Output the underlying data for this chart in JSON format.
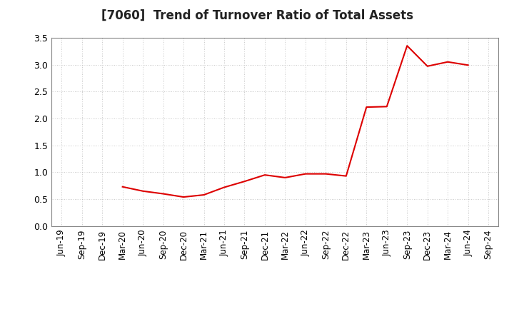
{
  "title": "[7060]  Trend of Turnover Ratio of Total Assets",
  "line_color": "#dd0000",
  "line_width": 1.5,
  "background_color": "#ffffff",
  "grid_color": "#bbbbbb",
  "ylim": [
    0.0,
    3.5
  ],
  "yticks": [
    0.0,
    0.5,
    1.0,
    1.5,
    2.0,
    2.5,
    3.0,
    3.5
  ],
  "values": [
    null,
    null,
    null,
    0.73,
    0.65,
    0.6,
    0.54,
    0.58,
    0.72,
    0.83,
    0.95,
    0.9,
    0.97,
    0.97,
    0.93,
    2.21,
    2.22,
    3.35,
    2.97,
    3.05,
    2.99,
    null
  ],
  "xtick_labels": [
    "Jun-19",
    "Sep-19",
    "Dec-19",
    "Mar-20",
    "Jun-20",
    "Sep-20",
    "Dec-20",
    "Mar-21",
    "Jun-21",
    "Sep-21",
    "Dec-21",
    "Mar-22",
    "Jun-22",
    "Sep-22",
    "Dec-22",
    "Mar-23",
    "Jun-23",
    "Sep-23",
    "Dec-23",
    "Mar-24",
    "Jun-24",
    "Sep-24"
  ],
  "title_fontsize": 12,
  "tick_fontsize": 8.5,
  "ytick_fontsize": 9
}
